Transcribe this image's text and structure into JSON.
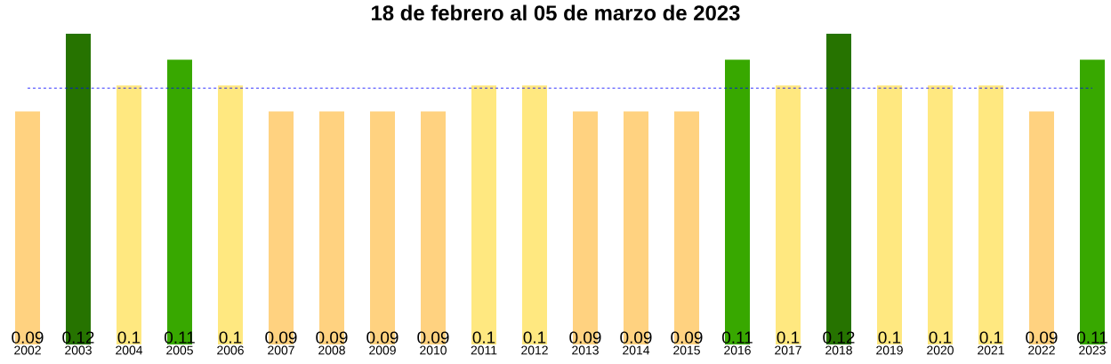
{
  "chart_data": {
    "type": "bar",
    "title": "18 de febrero al 05 de marzo de 2023",
    "categories": [
      "2002",
      "2003",
      "2004",
      "2005",
      "2006",
      "2007",
      "2008",
      "2009",
      "2010",
      "2011",
      "2012",
      "2013",
      "2014",
      "2015",
      "2016",
      "2017",
      "2018",
      "2019",
      "2020",
      "2021",
      "2022",
      "2023"
    ],
    "values": [
      0.09,
      0.12,
      0.1,
      0.11,
      0.1,
      0.09,
      0.09,
      0.09,
      0.09,
      0.1,
      0.1,
      0.09,
      0.09,
      0.09,
      0.11,
      0.1,
      0.12,
      0.1,
      0.1,
      0.1,
      0.09,
      0.11
    ],
    "value_labels": [
      "0.09",
      "0.12",
      "0.1",
      "0.11",
      "0.1",
      "0.09",
      "0.09",
      "0.09",
      "0.09",
      "0.1",
      "0.1",
      "0.09",
      "0.09",
      "0.09",
      "0.11",
      "0.1",
      "0.12",
      "0.1",
      "0.1",
      "0.1",
      "0.09",
      "0.11"
    ],
    "colors": [
      "#ffd280",
      "#267300",
      "#ffe880",
      "#38a800",
      "#ffe880",
      "#ffd280",
      "#ffd280",
      "#ffd280",
      "#ffd280",
      "#ffe880",
      "#ffe880",
      "#ffd280",
      "#ffd280",
      "#ffd280",
      "#38a800",
      "#ffe880",
      "#267300",
      "#ffe880",
      "#ffe880",
      "#ffe880",
      "#ffd280",
      "#38a800"
    ],
    "ylim": [
      0,
      0.12
    ],
    "ref_lines": [
      {
        "axis": "y",
        "value": 0.099,
        "color": "#0000ff",
        "line_style": "dashed"
      }
    ],
    "grid": false
  }
}
